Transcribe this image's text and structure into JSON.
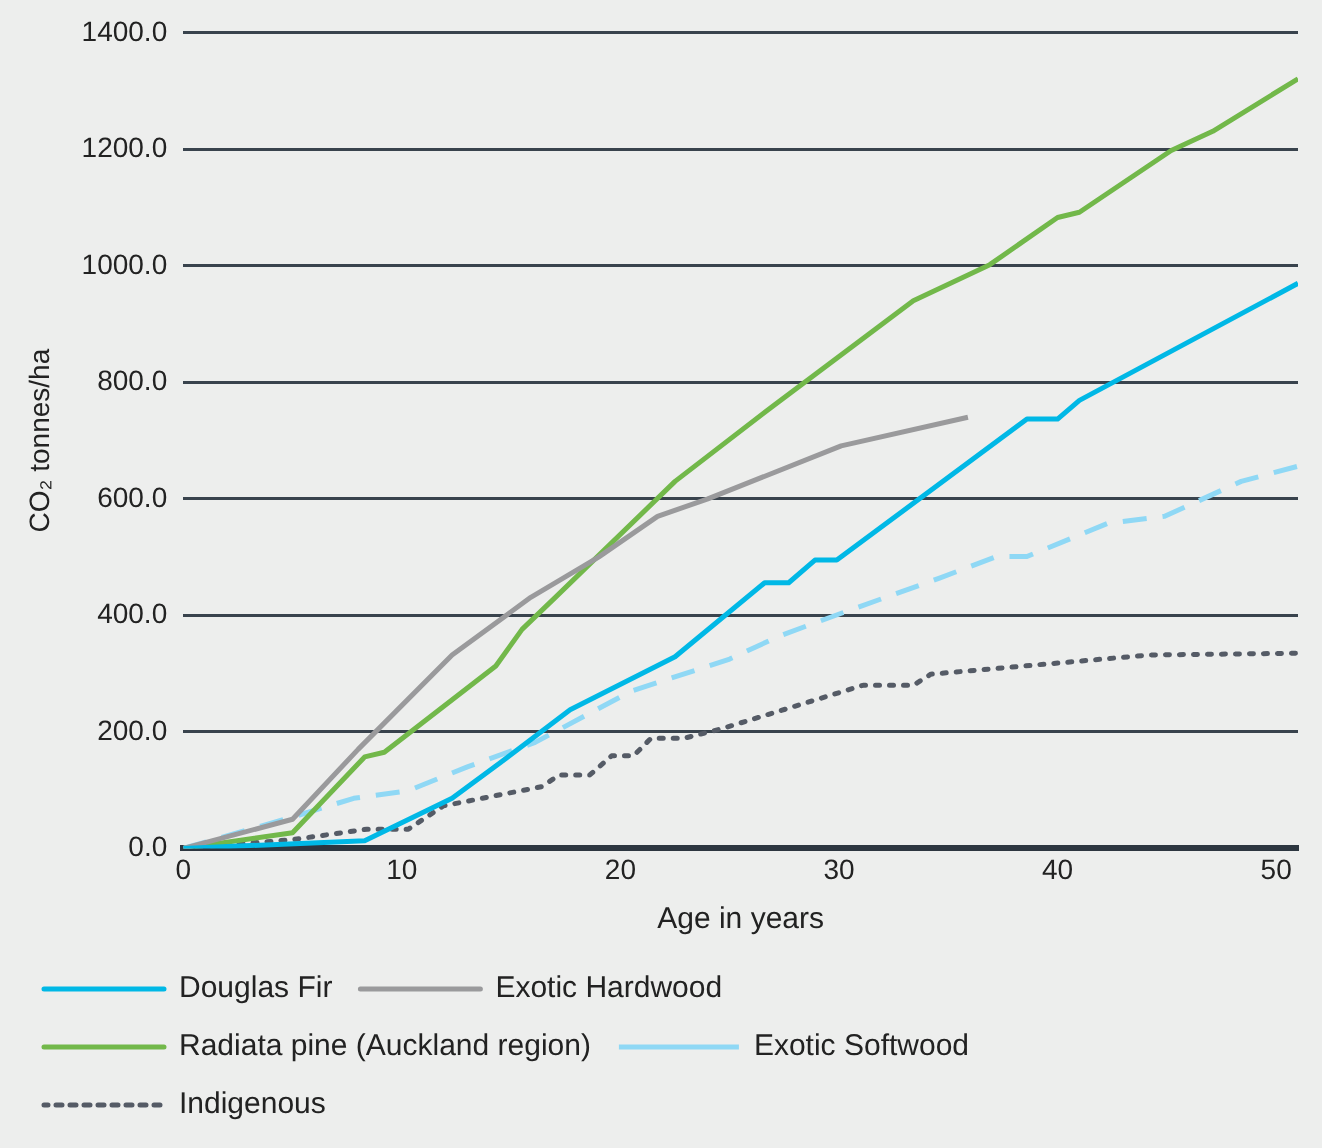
{
  "chart_data": {
    "type": "line",
    "xlabel": "Age in years",
    "ylabel": "CO₂ tonnes/ha",
    "xlim": [
      0,
      51
    ],
    "xticks": [
      0,
      10,
      20,
      30,
      40,
      50
    ],
    "ylim": [
      0,
      1400
    ],
    "yticks": [
      {
        "value": 0,
        "label": "0.0"
      },
      {
        "value": 200,
        "label": "200.0"
      },
      {
        "value": 400,
        "label": "400.0"
      },
      {
        "value": 600,
        "label": "600.0"
      },
      {
        "value": 800,
        "label": "800.0"
      },
      {
        "value": 1000,
        "label": "1000.0"
      },
      {
        "value": 1200,
        "label": "1200.0"
      },
      {
        "value": 1400,
        "label": "1400.0"
      }
    ],
    "grid": "y",
    "legend": "bottom",
    "marker": "none",
    "series": [
      {
        "name": "Douglas Fir",
        "color": "#00b8e6",
        "line_style": "solid",
        "x": [
          0,
          8.3,
          12.3,
          14.5,
          17.7,
          22.5,
          26.6,
          27.7,
          28.9,
          29.9,
          38.6,
          40,
          41,
          51
        ],
        "values": [
          0,
          13,
          86,
          147,
          238,
          329,
          456,
          456,
          495,
          495,
          737,
          737,
          769,
          970
        ]
      },
      {
        "name": "Exotic Hardwood",
        "color": "#9a9a9c",
        "line_style": "solid",
        "x": [
          0,
          5,
          8,
          12.3,
          15.9,
          19,
          21.7,
          24,
          30.1,
          35.9
        ],
        "values": [
          0,
          50,
          170,
          332,
          431,
          500,
          570,
          600,
          691,
          740
        ]
      },
      {
        "name": "Radiata pine (Auckland region)",
        "color": "#72b84a",
        "line_style": "solid",
        "x": [
          0,
          5,
          8.3,
          9.2,
          14.3,
          15.5,
          17,
          22.5,
          27,
          33.4,
          36.9,
          40,
          41,
          45.2,
          47.1,
          51
        ],
        "values": [
          0,
          27,
          157,
          165,
          313,
          376,
          430,
          630,
          760,
          940,
          1002,
          1083,
          1092,
          1198,
          1231,
          1321
        ]
      },
      {
        "name": "Exotic Softwood",
        "color": "#8fd8f5",
        "line_style": "dashed",
        "x": [
          0,
          5.2,
          7.8,
          10.3,
          13,
          16.1,
          20.5,
          25,
          27.3,
          30.5,
          34.6,
          37.2,
          38.6,
          42.3,
          44.9,
          48.4,
          51
        ],
        "values": [
          0,
          56,
          86,
          99,
          140,
          182,
          270,
          325,
          365,
          409,
          464,
          501,
          501,
          558,
          570,
          630,
          656
        ]
      },
      {
        "name": "Indigenous",
        "color": "#555b66",
        "line_style": "dotted",
        "x": [
          0,
          5,
          8.4,
          10.3,
          11.9,
          16.4,
          17.2,
          18.6,
          19.6,
          20.6,
          21.4,
          22.9,
          24.6,
          31.1,
          33.4,
          34.2,
          44.2,
          51
        ],
        "values": [
          0,
          15,
          33,
          33,
          73,
          106,
          126,
          126,
          159,
          159,
          189,
          189,
          205,
          280,
          280,
          299,
          332,
          335
        ]
      }
    ]
  }
}
